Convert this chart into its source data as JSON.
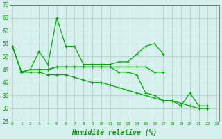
{
  "xlabel": "Humidité relative (%)",
  "ylim": [
    25,
    70
  ],
  "yticks": [
    25,
    30,
    35,
    40,
    45,
    50,
    55,
    60,
    65,
    70
  ],
  "xlim": [
    -0.3,
    23.3
  ],
  "background_color": "#d6f0ee",
  "grid_color": "#b8cece",
  "line_color": "#00aa00",
  "series": [
    [
      54,
      44,
      45,
      52,
      47,
      65,
      54,
      54,
      47,
      47,
      47,
      47,
      48,
      48,
      51,
      54,
      55,
      51,
      null,
      null,
      null,
      null,
      null,
      null
    ],
    [
      54,
      44,
      45,
      45,
      45,
      46,
      46,
      46,
      46,
      46,
      46,
      46,
      46,
      46,
      46,
      46,
      44,
      44,
      null,
      null,
      null,
      null,
      null,
      null
    ],
    [
      54,
      44,
      45,
      45,
      45,
      46,
      46,
      46,
      46,
      46,
      46,
      46,
      44,
      44,
      43,
      36,
      35,
      33,
      33,
      31,
      36,
      31,
      31,
      null
    ],
    [
      54,
      44,
      44,
      44,
      43,
      43,
      43,
      42,
      41,
      40,
      40,
      39,
      38,
      37,
      36,
      35,
      34,
      33,
      33,
      32,
      31,
      30,
      30,
      null
    ]
  ],
  "x_labels": [
    "0",
    "1",
    "2",
    "3",
    "4",
    "5",
    "6",
    "7",
    "8",
    "9",
    "10",
    "11",
    "12",
    "13",
    "14",
    "15",
    "16",
    "17",
    "18",
    "19",
    "20",
    "21",
    "22",
    "23"
  ]
}
